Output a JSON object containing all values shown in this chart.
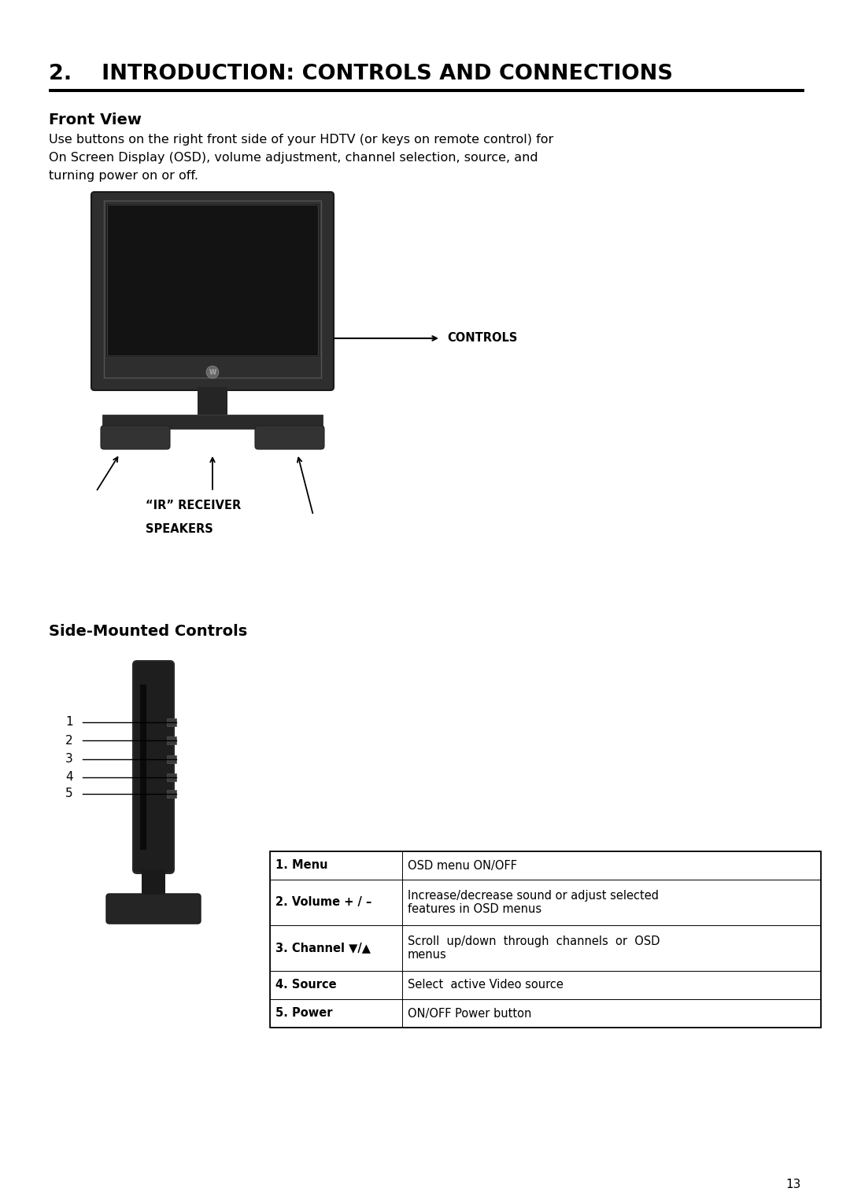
{
  "bg_color": "#ffffff",
  "page_number": "13",
  "title_num": "2.",
  "title_text": "INTRODUCTION: CONTROLS AND CONNECTIONS",
  "section1_heading": "Front View",
  "section1_body_lines": [
    "Use buttons on the right front side of your HDTV (or keys on remote control) for",
    "On Screen Display (OSD), volume adjustment, channel selection, source, and",
    "turning power on or off."
  ],
  "front_label_controls": "CONTROLS",
  "front_label_ir": "“IR” RECEIVER",
  "front_label_speakers": "SPEAKERS",
  "section2_heading": "Side-Mounted Controls",
  "table_rows": [
    {
      "col1": "1. Menu",
      "col2": "OSD menu ON/OFF"
    },
    {
      "col1": "2. Volume + / –",
      "col2": "Increase/decrease sound or adjust selected\nfeatures in OSD menus"
    },
    {
      "col1": "3. Channel ▼/▲",
      "col2": "Scroll  up/down  through  channels  or  OSD\nmenus"
    },
    {
      "col1": "4. Source",
      "col2": "Select  active Video source"
    },
    {
      "col1": "5. Power",
      "col2": "ON/OFF Power button"
    }
  ],
  "side_labels": [
    "1",
    "2",
    "3",
    "4",
    "5"
  ],
  "tv_body_color": "#2a2a2a",
  "tv_screen_color": "#111111",
  "tv_bezel_inner_color": "#1a1a1a",
  "tv_stand_color": "#1e1e1e",
  "tv_foot_color": "#252525"
}
